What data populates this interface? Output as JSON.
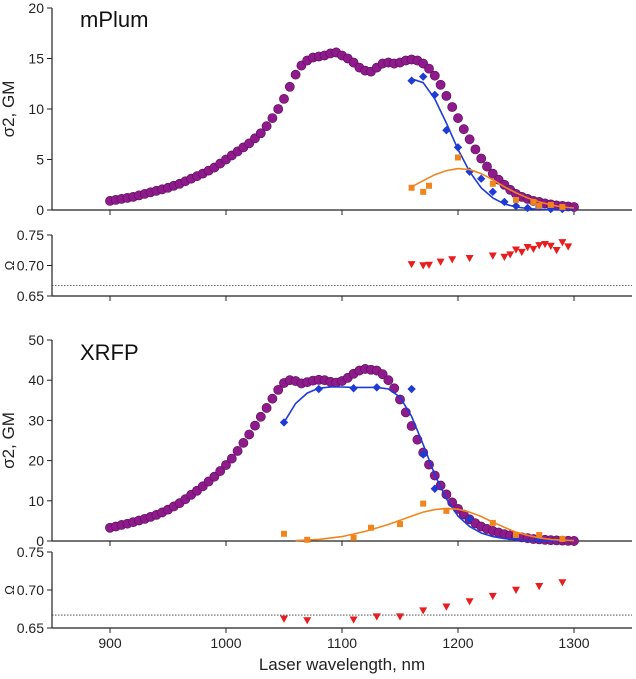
{
  "chart_data": [
    {
      "type": "scatter",
      "panel": "mPlum sigma2",
      "title": "mPlum",
      "ylabel": "σ2, GM",
      "xlim": [
        850,
        1350
      ],
      "ylim": [
        0,
        20
      ],
      "yticks": [
        "0",
        "5",
        "10",
        "15",
        "20"
      ],
      "series": [
        {
          "name": "measured (circles)",
          "color": "#8e1a8c",
          "marker": "circle",
          "x": [
            900,
            905,
            910,
            915,
            920,
            925,
            930,
            935,
            940,
            945,
            950,
            955,
            960,
            965,
            970,
            975,
            980,
            985,
            990,
            995,
            1000,
            1005,
            1010,
            1015,
            1020,
            1025,
            1030,
            1035,
            1040,
            1045,
            1050,
            1055,
            1060,
            1065,
            1070,
            1075,
            1080,
            1085,
            1090,
            1095,
            1100,
            1105,
            1110,
            1115,
            1120,
            1125,
            1130,
            1135,
            1140,
            1145,
            1150,
            1155,
            1160,
            1165,
            1170,
            1175,
            1180,
            1185,
            1190,
            1195,
            1200,
            1205,
            1210,
            1215,
            1220,
            1225,
            1230,
            1235,
            1240,
            1245,
            1250,
            1255,
            1260,
            1265,
            1270,
            1275,
            1280,
            1285,
            1290,
            1295,
            1300
          ],
          "y": [
            0.9,
            1.0,
            1.1,
            1.2,
            1.3,
            1.45,
            1.6,
            1.75,
            1.9,
            2.05,
            2.2,
            2.4,
            2.6,
            2.85,
            3.1,
            3.35,
            3.6,
            3.9,
            4.2,
            4.6,
            5.0,
            5.4,
            5.8,
            6.2,
            6.6,
            7.1,
            7.6,
            8.3,
            9.1,
            10.0,
            11.0,
            12.2,
            13.4,
            14.3,
            14.8,
            15.1,
            15.2,
            15.3,
            15.5,
            15.6,
            15.3,
            15.0,
            14.6,
            14.1,
            13.8,
            13.7,
            14.1,
            14.5,
            14.6,
            14.5,
            14.6,
            14.8,
            14.9,
            14.8,
            14.5,
            14.0,
            13.3,
            12.4,
            11.3,
            10.2,
            9.1,
            8.0,
            7.0,
            6.0,
            5.1,
            4.3,
            3.6,
            3.0,
            2.5,
            2.0,
            1.6,
            1.3,
            1.1,
            0.9,
            0.8,
            0.65,
            0.55,
            0.45,
            0.4,
            0.35,
            0.3
          ]
        },
        {
          "name": "blue diamonds",
          "color": "#1f3bd6",
          "marker": "diamond",
          "x": [
            1160,
            1170,
            1180,
            1190,
            1200,
            1210,
            1220,
            1230,
            1240,
            1250,
            1260,
            1270,
            1280,
            1290
          ],
          "y": [
            12.8,
            13.2,
            11.4,
            7.9,
            6.2,
            3.8,
            3.1,
            1.8,
            0.8,
            0.4,
            0.2,
            0.3,
            0.1,
            0.1
          ]
        },
        {
          "name": "blue fit",
          "color": "#1f3bd6",
          "marker": "line",
          "x": [
            1160,
            1170,
            1180,
            1190,
            1200,
            1210,
            1220,
            1230,
            1240,
            1250,
            1260,
            1270,
            1280,
            1290,
            1300
          ],
          "y": [
            13.0,
            12.6,
            11.0,
            8.6,
            6.0,
            3.8,
            2.2,
            1.2,
            0.6,
            0.3,
            0.15,
            0.07,
            0.03,
            0.01,
            0.0
          ]
        },
        {
          "name": "orange squares",
          "color": "#f0851e",
          "marker": "square",
          "x": [
            1160,
            1170,
            1175,
            1200,
            1230,
            1250,
            1265,
            1270,
            1280,
            1290
          ],
          "y": [
            2.2,
            1.8,
            2.4,
            5.2,
            2.6,
            1.0,
            0.8,
            0.4,
            0.5,
            0.3
          ]
        },
        {
          "name": "orange fit",
          "color": "#f0851e",
          "marker": "line",
          "x": [
            1160,
            1170,
            1180,
            1190,
            1200,
            1210,
            1220,
            1230,
            1240,
            1250,
            1260,
            1270,
            1280,
            1290,
            1300
          ],
          "y": [
            2.3,
            2.9,
            3.5,
            3.9,
            4.1,
            4.0,
            3.6,
            3.0,
            2.3,
            1.7,
            1.2,
            0.8,
            0.5,
            0.3,
            0.2
          ]
        }
      ]
    },
    {
      "type": "scatter",
      "panel": "mPlum Omega",
      "ylabel": "Ω",
      "xlim": [
        850,
        1350
      ],
      "ylim": [
        0.65,
        0.75
      ],
      "yticks": [
        "0.65",
        "0.70",
        "0.75"
      ],
      "reference_line": 0.667,
      "series": [
        {
          "name": "Omega",
          "color": "#e81e1e",
          "marker": "triangle-down",
          "x": [
            1160,
            1170,
            1175,
            1185,
            1195,
            1210,
            1230,
            1240,
            1245,
            1250,
            1255,
            1260,
            1265,
            1270,
            1275,
            1280,
            1285,
            1290,
            1295
          ],
          "y": [
            0.702,
            0.7,
            0.701,
            0.706,
            0.71,
            0.712,
            0.716,
            0.714,
            0.718,
            0.726,
            0.722,
            0.73,
            0.727,
            0.733,
            0.735,
            0.732,
            0.725,
            0.738,
            0.731
          ]
        }
      ]
    },
    {
      "type": "scatter",
      "panel": "XRFP sigma2",
      "title": "XRFP",
      "ylabel": "σ2, GM",
      "xlim": [
        850,
        1350
      ],
      "ylim": [
        0,
        50
      ],
      "yticks": [
        "0",
        "10",
        "20",
        "30",
        "40",
        "50"
      ],
      "series": [
        {
          "name": "measured (circles)",
          "color": "#8e1a8c",
          "marker": "circle",
          "x": [
            900,
            905,
            910,
            915,
            920,
            925,
            930,
            935,
            940,
            945,
            950,
            955,
            960,
            965,
            970,
            975,
            980,
            985,
            990,
            995,
            1000,
            1005,
            1010,
            1015,
            1020,
            1025,
            1030,
            1035,
            1040,
            1045,
            1050,
            1055,
            1060,
            1065,
            1070,
            1075,
            1080,
            1085,
            1090,
            1095,
            1100,
            1105,
            1110,
            1115,
            1120,
            1125,
            1130,
            1135,
            1140,
            1145,
            1150,
            1155,
            1160,
            1165,
            1170,
            1175,
            1180,
            1185,
            1190,
            1195,
            1200,
            1205,
            1210,
            1215,
            1220,
            1225,
            1230,
            1235,
            1240,
            1245,
            1250,
            1255,
            1260,
            1265,
            1270,
            1275,
            1280,
            1285,
            1290,
            1295,
            1300
          ],
          "y": [
            3.3,
            3.6,
            4.0,
            4.3,
            4.7,
            5.1,
            5.5,
            6.0,
            6.5,
            7.1,
            7.8,
            8.6,
            9.4,
            10.4,
            11.5,
            12.5,
            13.6,
            14.8,
            16.0,
            17.4,
            18.9,
            20.5,
            22.4,
            24.4,
            26.5,
            28.7,
            30.9,
            33.1,
            35.4,
            37.6,
            39.3,
            40.0,
            39.8,
            39.2,
            39.5,
            39.9,
            40.1,
            40.0,
            39.6,
            39.4,
            39.8,
            40.6,
            41.6,
            42.4,
            42.8,
            42.6,
            42.4,
            41.5,
            40.0,
            38.0,
            35.2,
            32.0,
            28.6,
            25.2,
            22.0,
            19.0,
            16.3,
            13.8,
            11.6,
            9.6,
            8.0,
            6.6,
            5.4,
            4.4,
            3.6,
            3.0,
            2.5,
            2.1,
            1.7,
            1.4,
            1.1,
            0.9,
            0.7,
            0.5,
            0.4,
            0.3,
            0.2,
            0.15,
            0.1,
            0.05,
            0.02
          ]
        },
        {
          "name": "blue diamonds",
          "color": "#1f3bd6",
          "marker": "diamond",
          "x": [
            1050,
            1080,
            1110,
            1130,
            1160,
            1170,
            1180,
            1210,
            1250,
            1270
          ],
          "y": [
            29.5,
            37.8,
            38.0,
            38.2,
            37.8,
            21.5,
            13.0,
            5.5,
            1.0,
            0.5
          ]
        },
        {
          "name": "blue fit",
          "color": "#1f3bd6",
          "marker": "line",
          "x": [
            1050,
            1060,
            1070,
            1080,
            1090,
            1100,
            1110,
            1120,
            1130,
            1140,
            1150,
            1160,
            1170,
            1180,
            1190,
            1200,
            1210,
            1220,
            1230,
            1240,
            1250,
            1260,
            1270,
            1280,
            1290,
            1300
          ],
          "y": [
            29.5,
            34.2,
            36.8,
            38.0,
            38.3,
            38.3,
            38.2,
            38.2,
            38.2,
            37.8,
            35.8,
            31.0,
            24.0,
            16.5,
            10.5,
            6.2,
            3.6,
            2.0,
            1.1,
            0.6,
            0.3,
            0.15,
            0.07,
            0.03,
            0.01,
            0.0
          ]
        },
        {
          "name": "orange squares",
          "color": "#f0851e",
          "marker": "square",
          "x": [
            1050,
            1070,
            1110,
            1125,
            1150,
            1170,
            1190,
            1230,
            1250,
            1270,
            1290
          ],
          "y": [
            1.8,
            0.3,
            0.8,
            3.3,
            4.2,
            9.3,
            7.5,
            4.5,
            1.5,
            1.5,
            0.5
          ]
        },
        {
          "name": "orange fit",
          "color": "#f0851e",
          "marker": "line",
          "x": [
            1060,
            1080,
            1100,
            1120,
            1140,
            1160,
            1170,
            1180,
            1190,
            1200,
            1210,
            1220,
            1230,
            1240,
            1250,
            1260,
            1270,
            1280,
            1290,
            1300
          ],
          "y": [
            0.1,
            0.4,
            1.1,
            2.4,
            4.1,
            6.2,
            7.2,
            7.8,
            8.1,
            7.9,
            7.2,
            6.1,
            4.7,
            3.4,
            2.2,
            1.4,
            0.8,
            0.4,
            0.2,
            0.1
          ]
        }
      ]
    },
    {
      "type": "scatter",
      "panel": "XRFP Omega",
      "ylabel": "Ω",
      "xlabel": "Laser wavelength, nm",
      "xlim": [
        850,
        1350
      ],
      "xticks": [
        "900",
        "1000",
        "1100",
        "1200",
        "1300"
      ],
      "ylim": [
        0.65,
        0.75
      ],
      "yticks": [
        "0.65",
        "0.70",
        "0.75"
      ],
      "reference_line": 0.667,
      "series": [
        {
          "name": "Omega",
          "color": "#e81e1e",
          "marker": "triangle-down",
          "x": [
            1050,
            1070,
            1110,
            1130,
            1150,
            1170,
            1190,
            1210,
            1230,
            1250,
            1270,
            1290
          ],
          "y": [
            0.662,
            0.66,
            0.661,
            0.665,
            0.665,
            0.673,
            0.678,
            0.685,
            0.692,
            0.7,
            0.705,
            0.71
          ]
        }
      ]
    }
  ]
}
